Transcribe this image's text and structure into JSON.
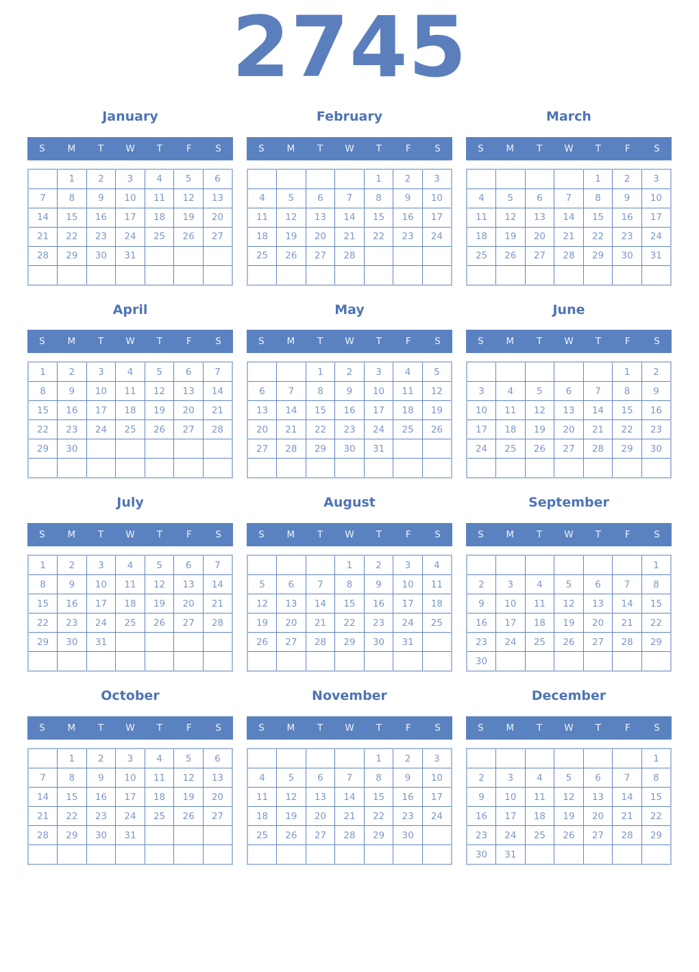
{
  "year": "2745",
  "weekday_headers": [
    "S",
    "M",
    "T",
    "W",
    "T",
    "F",
    "S"
  ],
  "colors": {
    "year_title": "#5b7fbd",
    "month_title": "#4d74b5",
    "weekday_bar_bg": "#5b82c0",
    "weekday_text": "#eef3fa",
    "day_text": "#7b97c7",
    "cell_border": "#5e84c1",
    "table_outer_border": "#a9bdda"
  },
  "months": [
    {
      "name": "January",
      "cells": [
        [
          "",
          "1",
          "2",
          "3",
          "4",
          "5",
          "6"
        ],
        [
          "7",
          "8",
          "9",
          "10",
          "11",
          "12",
          "13"
        ],
        [
          "14",
          "15",
          "16",
          "17",
          "18",
          "19",
          "20"
        ],
        [
          "21",
          "22",
          "23",
          "24",
          "25",
          "26",
          "27"
        ],
        [
          "28",
          "29",
          "30",
          "31",
          "",
          "",
          ""
        ],
        [
          "",
          "",
          "",
          "",
          "",
          "",
          ""
        ]
      ]
    },
    {
      "name": "February",
      "cells": [
        [
          "",
          "",
          "",
          "",
          "1",
          "2",
          "3"
        ],
        [
          "4",
          "5",
          "6",
          "7",
          "8",
          "9",
          "10"
        ],
        [
          "11",
          "12",
          "13",
          "14",
          "15",
          "16",
          "17"
        ],
        [
          "18",
          "19",
          "20",
          "21",
          "22",
          "23",
          "24"
        ],
        [
          "25",
          "26",
          "27",
          "28",
          "",
          "",
          ""
        ],
        [
          "",
          "",
          "",
          "",
          "",
          "",
          ""
        ]
      ]
    },
    {
      "name": "March",
      "cells": [
        [
          "",
          "",
          "",
          "",
          "1",
          "2",
          "3"
        ],
        [
          "4",
          "5",
          "6",
          "7",
          "8",
          "9",
          "10"
        ],
        [
          "11",
          "12",
          "13",
          "14",
          "15",
          "16",
          "17"
        ],
        [
          "18",
          "19",
          "20",
          "21",
          "22",
          "23",
          "24"
        ],
        [
          "25",
          "26",
          "27",
          "28",
          "29",
          "30",
          "31"
        ],
        [
          "",
          "",
          "",
          "",
          "",
          "",
          ""
        ]
      ]
    },
    {
      "name": "April",
      "cells": [
        [
          "1",
          "2",
          "3",
          "4",
          "5",
          "6",
          "7"
        ],
        [
          "8",
          "9",
          "10",
          "11",
          "12",
          "13",
          "14"
        ],
        [
          "15",
          "16",
          "17",
          "18",
          "19",
          "20",
          "21"
        ],
        [
          "22",
          "23",
          "24",
          "25",
          "26",
          "27",
          "28"
        ],
        [
          "29",
          "30",
          "",
          "",
          "",
          "",
          ""
        ],
        [
          "",
          "",
          "",
          "",
          "",
          "",
          ""
        ]
      ]
    },
    {
      "name": "May",
      "cells": [
        [
          "",
          "",
          "1",
          "2",
          "3",
          "4",
          "5"
        ],
        [
          "6",
          "7",
          "8",
          "9",
          "10",
          "11",
          "12"
        ],
        [
          "13",
          "14",
          "15",
          "16",
          "17",
          "18",
          "19"
        ],
        [
          "20",
          "21",
          "22",
          "23",
          "24",
          "25",
          "26"
        ],
        [
          "27",
          "28",
          "29",
          "30",
          "31",
          "",
          ""
        ],
        [
          "",
          "",
          "",
          "",
          "",
          "",
          ""
        ]
      ]
    },
    {
      "name": "June",
      "cells": [
        [
          "",
          "",
          "",
          "",
          "",
          "1",
          "2"
        ],
        [
          "3",
          "4",
          "5",
          "6",
          "7",
          "8",
          "9"
        ],
        [
          "10",
          "11",
          "12",
          "13",
          "14",
          "15",
          "16"
        ],
        [
          "17",
          "18",
          "19",
          "20",
          "21",
          "22",
          "23"
        ],
        [
          "24",
          "25",
          "26",
          "27",
          "28",
          "29",
          "30"
        ],
        [
          "",
          "",
          "",
          "",
          "",
          "",
          ""
        ]
      ]
    },
    {
      "name": "July",
      "cells": [
        [
          "1",
          "2",
          "3",
          "4",
          "5",
          "6",
          "7"
        ],
        [
          "8",
          "9",
          "10",
          "11",
          "12",
          "13",
          "14"
        ],
        [
          "15",
          "16",
          "17",
          "18",
          "19",
          "20",
          "21"
        ],
        [
          "22",
          "23",
          "24",
          "25",
          "26",
          "27",
          "28"
        ],
        [
          "29",
          "30",
          "31",
          "",
          "",
          "",
          ""
        ],
        [
          "",
          "",
          "",
          "",
          "",
          "",
          ""
        ]
      ]
    },
    {
      "name": "August",
      "cells": [
        [
          "",
          "",
          "",
          "1",
          "2",
          "3",
          "4"
        ],
        [
          "5",
          "6",
          "7",
          "8",
          "9",
          "10",
          "11"
        ],
        [
          "12",
          "13",
          "14",
          "15",
          "16",
          "17",
          "18"
        ],
        [
          "19",
          "20",
          "21",
          "22",
          "23",
          "24",
          "25"
        ],
        [
          "26",
          "27",
          "28",
          "29",
          "30",
          "31",
          ""
        ],
        [
          "",
          "",
          "",
          "",
          "",
          "",
          ""
        ]
      ]
    },
    {
      "name": "September",
      "cells": [
        [
          "",
          "",
          "",
          "",
          "",
          "",
          "1"
        ],
        [
          "2",
          "3",
          "4",
          "5",
          "6",
          "7",
          "8"
        ],
        [
          "9",
          "10",
          "11",
          "12",
          "13",
          "14",
          "15"
        ],
        [
          "16",
          "17",
          "18",
          "19",
          "20",
          "21",
          "22"
        ],
        [
          "23",
          "24",
          "25",
          "26",
          "27",
          "28",
          "29"
        ],
        [
          "30",
          "",
          "",
          "",
          "",
          "",
          ""
        ]
      ]
    },
    {
      "name": "October",
      "cells": [
        [
          "",
          "1",
          "2",
          "3",
          "4",
          "5",
          "6"
        ],
        [
          "7",
          "8",
          "9",
          "10",
          "11",
          "12",
          "13"
        ],
        [
          "14",
          "15",
          "16",
          "17",
          "18",
          "19",
          "20"
        ],
        [
          "21",
          "22",
          "23",
          "24",
          "25",
          "26",
          "27"
        ],
        [
          "28",
          "29",
          "30",
          "31",
          "",
          "",
          ""
        ],
        [
          "",
          "",
          "",
          "",
          "",
          "",
          ""
        ]
      ]
    },
    {
      "name": "November",
      "cells": [
        [
          "",
          "",
          "",
          "",
          "1",
          "2",
          "3"
        ],
        [
          "4",
          "5",
          "6",
          "7",
          "8",
          "9",
          "10"
        ],
        [
          "11",
          "12",
          "13",
          "14",
          "15",
          "16",
          "17"
        ],
        [
          "18",
          "19",
          "20",
          "21",
          "22",
          "23",
          "24"
        ],
        [
          "25",
          "26",
          "27",
          "28",
          "29",
          "30",
          ""
        ],
        [
          "",
          "",
          "",
          "",
          "",
          "",
          ""
        ]
      ]
    },
    {
      "name": "December",
      "cells": [
        [
          "",
          "",
          "",
          "",
          "",
          "",
          "1"
        ],
        [
          "2",
          "3",
          "4",
          "5",
          "6",
          "7",
          "8"
        ],
        [
          "9",
          "10",
          "11",
          "12",
          "13",
          "14",
          "15"
        ],
        [
          "16",
          "17",
          "18",
          "19",
          "20",
          "21",
          "22"
        ],
        [
          "23",
          "24",
          "25",
          "26",
          "27",
          "28",
          "29"
        ],
        [
          "30",
          "31",
          "",
          "",
          "",
          "",
          ""
        ]
      ]
    }
  ]
}
